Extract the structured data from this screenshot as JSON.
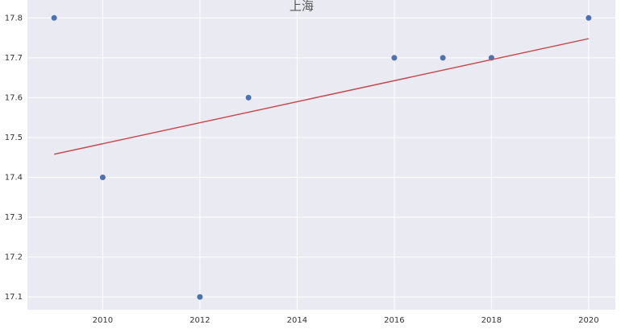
{
  "chart_data": {
    "type": "scatter",
    "title": "上海",
    "series": [
      {
        "color": "#4c72b0",
        "x": [
          2009,
          2010,
          2012,
          2013,
          2016,
          2017,
          2018,
          2020
        ],
        "values": [
          17.8,
          17.4,
          17.1,
          17.6,
          17.7,
          17.7,
          17.7,
          17.8
        ],
        "mode": "markers"
      },
      {
        "color": "#c44e52",
        "x": [
          2009,
          2020
        ],
        "values": [
          17.458,
          17.748
        ],
        "mode": "line"
      }
    ],
    "xlim": [
      2008.45,
      2020.55
    ],
    "ylim": [
      17.068,
      17.845
    ],
    "xticks": [
      2010,
      2012,
      2014,
      2016,
      2018,
      2020
    ],
    "yticks": [
      17.1,
      17.2,
      17.3,
      17.4,
      17.5,
      17.6,
      17.7,
      17.8
    ],
    "grid": true
  }
}
